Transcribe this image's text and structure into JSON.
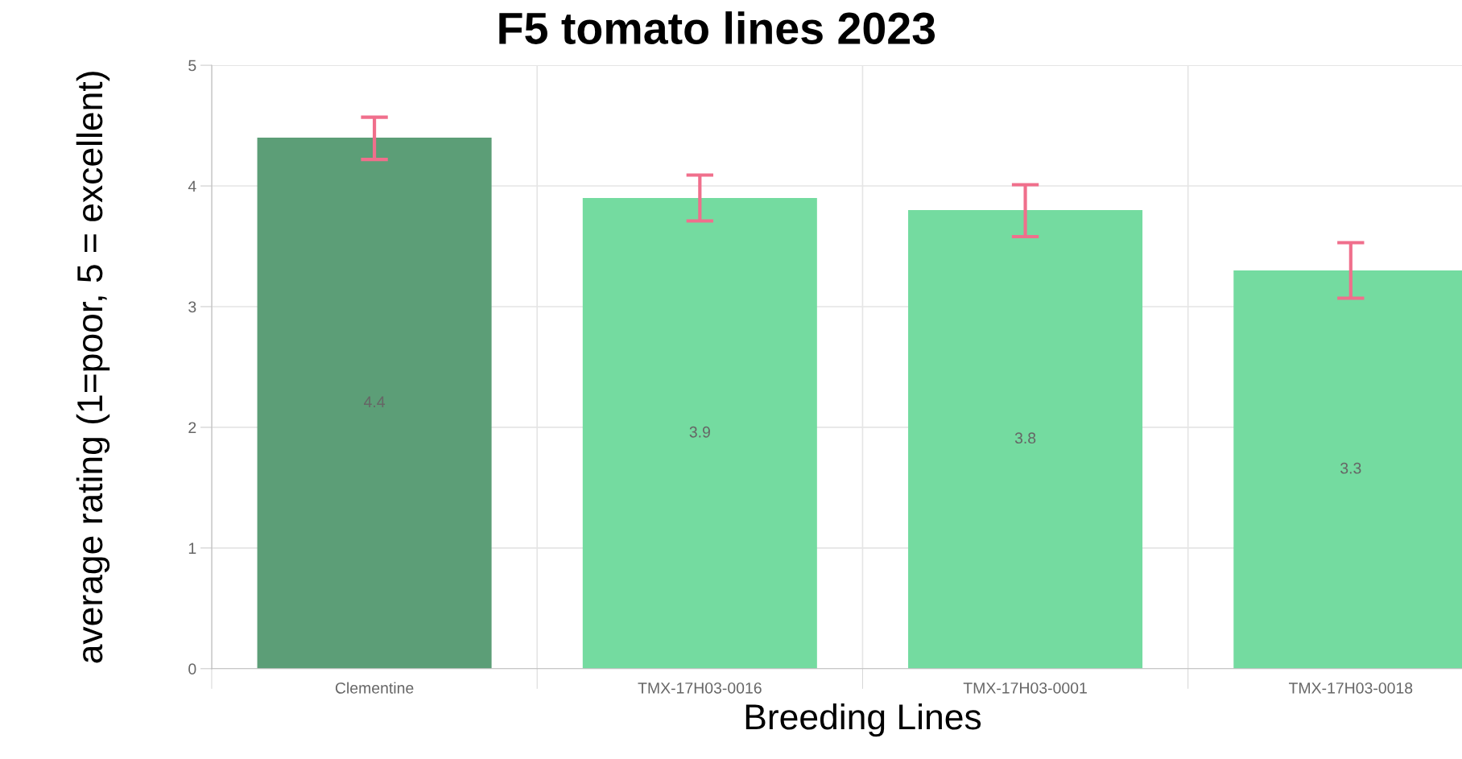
{
  "chart_data": {
    "type": "bar",
    "title": "F5 tomato lines 2023",
    "xlabel": "Breeding Lines",
    "ylabel": "average rating (1=poor, 5 = excellent)",
    "categories": [
      "Clementine",
      "TMX-17H03-0016",
      "TMX-17H03-0001",
      "TMX-17H03-0018"
    ],
    "values": [
      4.4,
      3.9,
      3.8,
      3.3
    ],
    "colors": [
      "#5c9e77",
      "#74dba0",
      "#74dba0",
      "#74dba0"
    ],
    "errors": [
      [
        4.22,
        4.57
      ],
      [
        3.71,
        4.09
      ],
      [
        3.58,
        4.01
      ],
      [
        3.07,
        3.53
      ]
    ],
    "ylim": [
      0,
      5
    ],
    "yticks": [
      0,
      1,
      2,
      3,
      4,
      5
    ],
    "grid": true,
    "data_labels": true
  }
}
